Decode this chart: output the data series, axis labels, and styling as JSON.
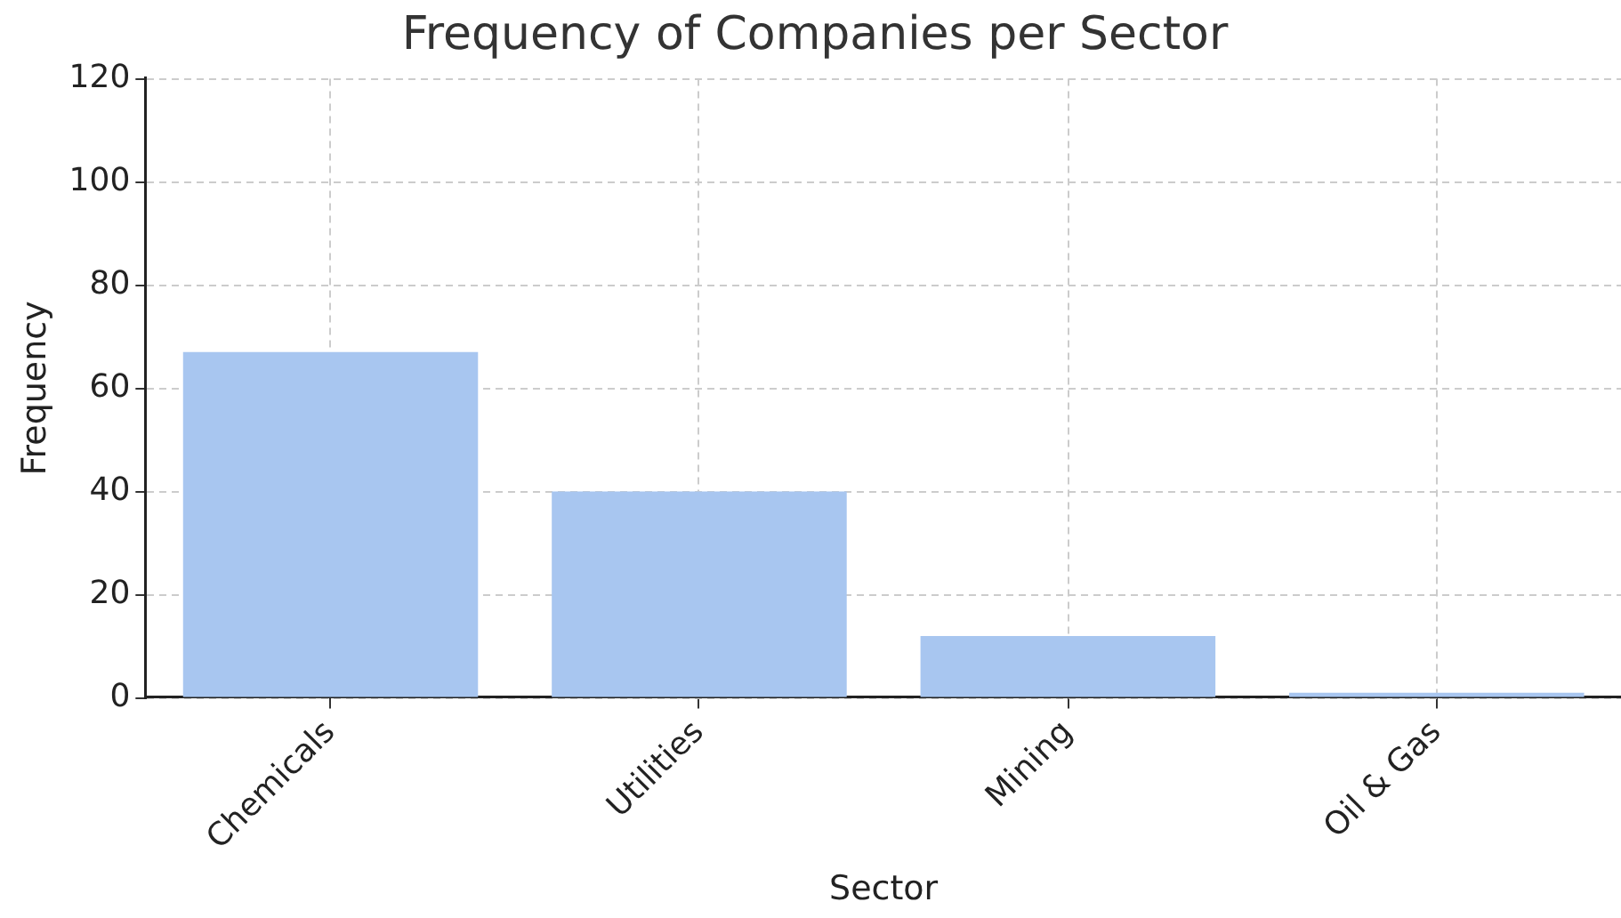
{
  "chart_data": {
    "type": "bar",
    "title": "Frequency of Companies per Sector",
    "xlabel": "Sector",
    "ylabel": "Frequency",
    "categories": [
      "Chemicals",
      "Utilities",
      "Mining",
      "Oil & Gas"
    ],
    "values": [
      67,
      40,
      12,
      1
    ],
    "color": "#a8c6f0",
    "ylim": [
      0,
      120
    ],
    "yticks": [
      0,
      20,
      40,
      60,
      80,
      100,
      120
    ],
    "grid": true,
    "line_style": "dashed"
  }
}
